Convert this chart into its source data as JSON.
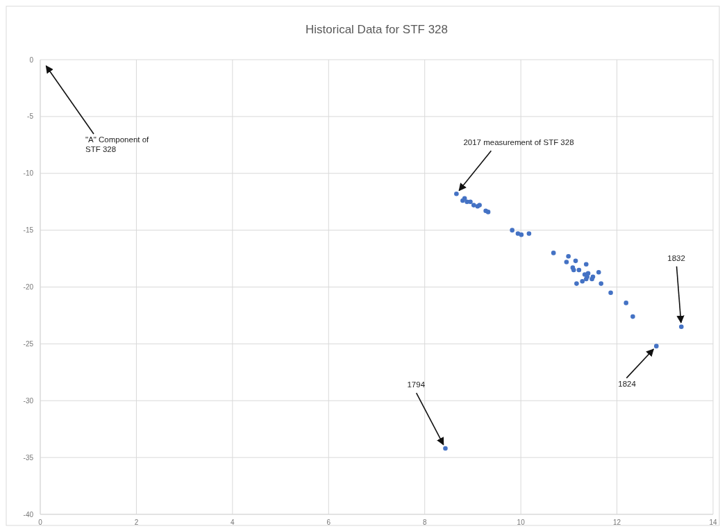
{
  "chart_data": {
    "type": "scatter",
    "title": "Historical Data for STF 328",
    "series": [
      {
        "color": "#4472c4",
        "x": [
          8.66,
          8.83,
          8.79,
          8.88,
          8.95,
          9.02,
          9.1,
          9.14,
          9.27,
          9.32,
          9.82,
          9.94,
          10.01,
          10.17,
          10.68,
          10.99,
          10.95,
          11.14,
          11.36,
          11.08,
          11.1,
          11.21,
          11.62,
          11.33,
          11.4,
          11.38,
          11.5,
          11.36,
          11.48,
          11.28,
          11.16,
          11.67,
          11.87,
          12.19,
          12.33,
          13.34,
          12.82,
          8.43
        ],
        "values": [
          -11.8,
          -12.2,
          -12.4,
          -12.5,
          -12.5,
          -12.8,
          -12.9,
          -12.8,
          -13.3,
          -13.4,
          -15.0,
          -15.3,
          -15.4,
          -15.3,
          -17.0,
          -17.3,
          -17.8,
          -17.7,
          -18.0,
          -18.3,
          -18.5,
          -18.5,
          -18.7,
          -18.9,
          -18.8,
          -19.1,
          -19.1,
          -19.3,
          -19.3,
          -19.5,
          -19.7,
          -19.7,
          -20.5,
          -21.4,
          -22.6,
          -23.5,
          -25.2,
          -34.2
        ]
      }
    ],
    "xlim": [
      0,
      14
    ],
    "xticks": [
      0,
      2,
      4,
      6,
      8,
      10,
      12,
      14
    ],
    "ylim": [
      -40,
      0
    ],
    "yticks": [
      -40,
      -35,
      -30,
      -25,
      -20,
      -15,
      -10,
      -5,
      0
    ],
    "grid": true,
    "marker": "circle",
    "annotations": [
      "\"A\" Component of STF 328",
      {
        "text": "2017 measurement of STF 328",
        "x": 8.66,
        "y": -11.8
      },
      {
        "text": "1794",
        "x": 8.43,
        "y": -34.2
      },
      {
        "text": "1824",
        "x": 12.82,
        "y": -25.2
      },
      {
        "text": "1832",
        "x": 13.34,
        "y": -23.5
      }
    ]
  }
}
